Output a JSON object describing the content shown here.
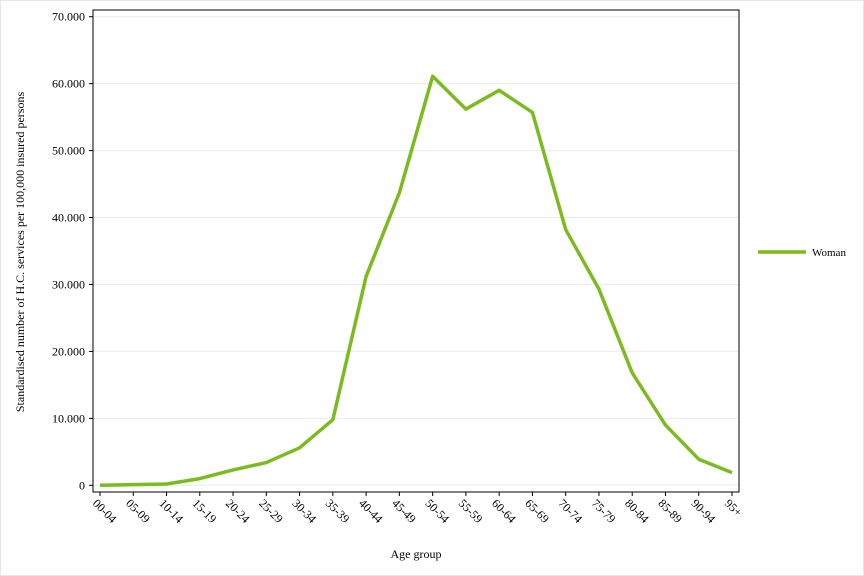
{
  "chart_data": {
    "type": "line",
    "x_label": "Age group",
    "y_label": "Standardised number of H.C. services per 100,000 insured persons",
    "categories": [
      "00-04",
      "05-09",
      "10-14",
      "15-19",
      "20-24",
      "25-29",
      "30-34",
      "35-39",
      "40-44",
      "45-49",
      "50-54",
      "55-59",
      "60-64",
      "65-69",
      "70-74",
      "75-79",
      "80-84",
      "85-89",
      "90-94",
      "95+"
    ],
    "series": [
      {
        "name": "Woman",
        "color": "#7cbb1f",
        "values": [
          0,
          100,
          200,
          1000,
          2300,
          3400,
          5600,
          9800,
          31200,
          43700,
          61100,
          56200,
          59000,
          55700,
          38200,
          29300,
          16800,
          9000,
          3900,
          1900
        ]
      }
    ],
    "ylim": [
      -1000,
      71000
    ],
    "yticks": [
      0,
      {
        "value": 10000,
        "label": "10.000"
      },
      {
        "value": 20000,
        "label": "20.000"
      },
      {
        "value": 30000,
        "label": "30.000"
      },
      {
        "value": 40000,
        "label": "40.000"
      },
      {
        "value": 50000,
        "label": "50.000"
      },
      {
        "value": 60000,
        "label": "60.000"
      },
      {
        "value": 70000,
        "label": "70.000"
      }
    ],
    "grid": true,
    "legend": "right"
  }
}
